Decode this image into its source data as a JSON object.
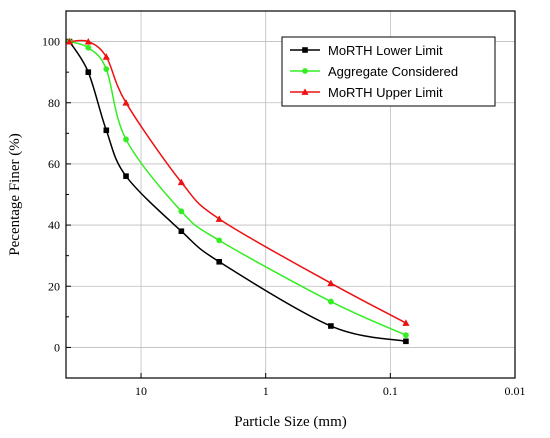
{
  "chart_data": {
    "type": "line",
    "xlabel": "Particle Size (mm)",
    "ylabel": "Pecentage Finer (%)",
    "x_scale": "log",
    "x_reversed": true,
    "xlim": [
      40,
      0.01
    ],
    "ylim": [
      -10,
      110
    ],
    "x_ticks": [
      {
        "value": 10,
        "label": "10"
      },
      {
        "value": 1,
        "label": "1"
      },
      {
        "value": 0.1,
        "label": "0.1"
      },
      {
        "value": 0.01,
        "label": "0.01"
      }
    ],
    "y_ticks": [
      {
        "value": 0,
        "label": "0"
      },
      {
        "value": 20,
        "label": "20"
      },
      {
        "value": 40,
        "label": "40"
      },
      {
        "value": 60,
        "label": "60"
      },
      {
        "value": 80,
        "label": "80"
      },
      {
        "value": 100,
        "label": "100"
      }
    ],
    "grid": true,
    "legend_position": "top-right",
    "series": [
      {
        "name": "MoRTH Lower Limit",
        "color": "#000000",
        "marker": "square",
        "x": [
          37.5,
          26.5,
          19,
          13.2,
          4.75,
          2.36,
          0.3,
          0.075
        ],
        "y": [
          100,
          90,
          71,
          56,
          38,
          28,
          7,
          2
        ]
      },
      {
        "name": "Aggregate Considered",
        "color": "#33ee22",
        "marker": "circle",
        "x": [
          37.5,
          26.5,
          19,
          13.2,
          4.75,
          2.36,
          0.3,
          0.075
        ],
        "y": [
          100,
          98,
          91,
          68,
          44.5,
          35,
          15,
          4
        ]
      },
      {
        "name": "MoRTH Upper Limit",
        "color": "#ee1111",
        "marker": "triangle",
        "x": [
          37.5,
          26.5,
          19,
          13.2,
          4.75,
          2.36,
          0.3,
          0.075
        ],
        "y": [
          100,
          100,
          95,
          80,
          54,
          42,
          21,
          8
        ]
      }
    ]
  }
}
